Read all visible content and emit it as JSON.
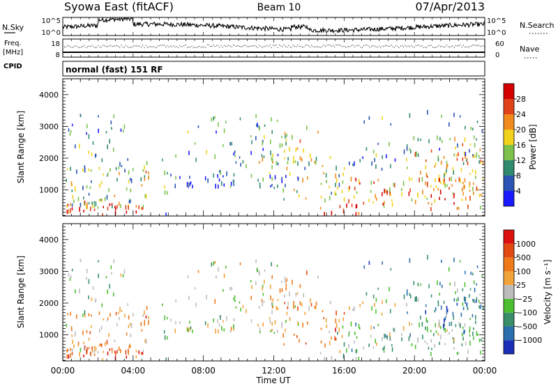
{
  "header": {
    "station": "Syowa East (fitACF)",
    "beam": "Beam 10",
    "date": "07/Apr/2013"
  },
  "strip_panels": {
    "nsky_label": "N.Sky",
    "nsky_ticks": [
      "10^5",
      "10^0"
    ],
    "nsearch_label": "N.Search",
    "nsearch_ticks": [
      "10^5",
      "10^0"
    ],
    "freq_label": "Freq.",
    "freq_unit": "[MHz]",
    "freq_ticks": [
      "18",
      "8"
    ],
    "nave_label": "Nave",
    "nave_ticks": [
      "60",
      "0"
    ],
    "cpid_label": "CPID",
    "cpid_value": "normal (fast) 151 RF"
  },
  "chart_data": [
    {
      "type": "heatmap",
      "name": "power",
      "ylabel": "Slant Range [km]",
      "y_ticks": [
        "1000",
        "2000",
        "3000",
        "4000"
      ],
      "ylim": [
        180,
        4500
      ],
      "xlim_hours": [
        0,
        24
      ],
      "colorbar": {
        "label": "Power [dB]",
        "ticks": [
          "4",
          "8",
          "12",
          "16",
          "20",
          "24",
          "28"
        ],
        "colors": [
          "#1a1aff",
          "#2a55b5",
          "#2e8b6e",
          "#7cc24a",
          "#f2d21b",
          "#f08a1c",
          "#e2421a",
          "#d40000"
        ]
      }
    },
    {
      "type": "heatmap",
      "name": "velocity",
      "ylabel": "Slant Range [km]",
      "y_ticks": [
        "1000",
        "2000",
        "3000",
        "4000"
      ],
      "ylim": [
        180,
        4500
      ],
      "xlim_hours": [
        0,
        24
      ],
      "x_ticks": [
        "00:00",
        "04:00",
        "08:00",
        "12:00",
        "16:00",
        "20:00",
        "00:00"
      ],
      "xlabel": "Time UT",
      "colorbar": {
        "label": "Velocity [m s⁻¹]",
        "ticks": [
          "1000",
          "500",
          "100",
          "25",
          "−25",
          "−100",
          "−500",
          "−1000"
        ],
        "colors": [
          "#1a2fb8",
          "#2a6fae",
          "#3a8f6a",
          "#4cbf30",
          "#bdbdbd",
          "#f2a33a",
          "#ef7a1a",
          "#e24a12",
          "#dd1010"
        ]
      }
    }
  ]
}
